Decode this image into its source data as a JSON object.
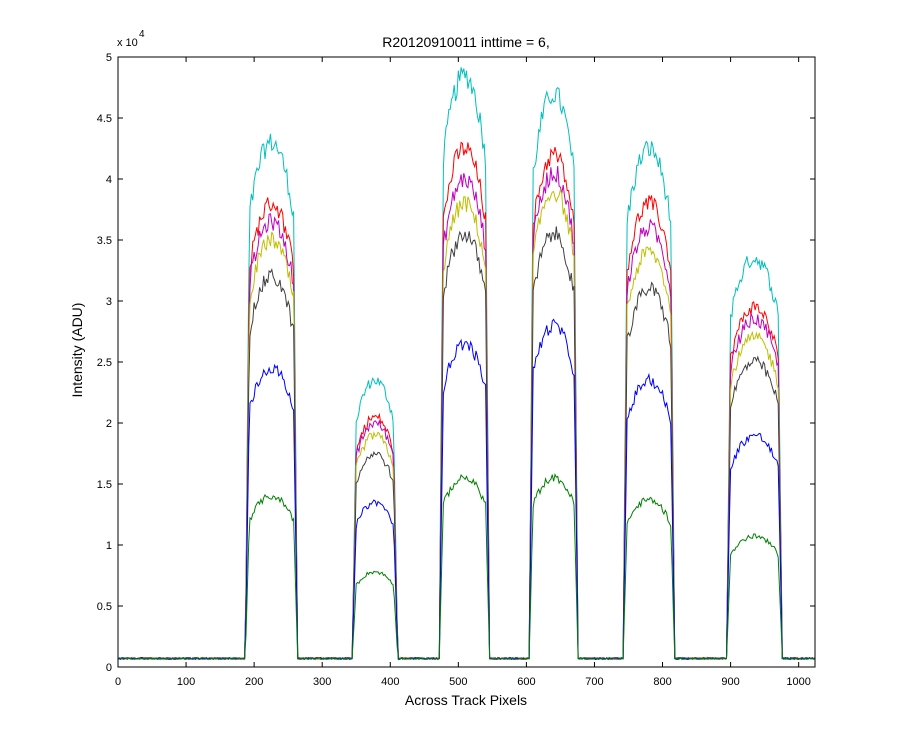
{
  "chart_data": {
    "type": "line",
    "title": "R20120910011 inttime = 6,",
    "xlabel": "Across Track Pixels",
    "ylabel": "Intensity (ADU)",
    "xlim": [
      0,
      1024
    ],
    "ylim": [
      0,
      50000
    ],
    "y_exponent_label": {
      "base": "x 10",
      "power": "4"
    },
    "x_ticks": [
      0,
      100,
      200,
      300,
      400,
      500,
      600,
      700,
      800,
      900,
      1000
    ],
    "x_tick_labels": [
      "0",
      "100",
      "200",
      "300",
      "400",
      "500",
      "600",
      "700",
      "800",
      "900",
      "1000"
    ],
    "y_ticks": [
      0,
      5000,
      10000,
      15000,
      20000,
      25000,
      30000,
      35000,
      40000,
      45000,
      50000
    ],
    "y_tick_labels": [
      "0",
      "0.5",
      "1",
      "1.5",
      "2",
      "2.5",
      "3",
      "3.5",
      "4",
      "4.5",
      "5"
    ],
    "grid": false,
    "legend": "none",
    "baseline": 700,
    "plateaus": [
      {
        "x_start": 193,
        "x_end": 258
      },
      {
        "x_start": 350,
        "x_end": 405
      },
      {
        "x_start": 478,
        "x_end": 540
      },
      {
        "x_start": 610,
        "x_end": 670
      },
      {
        "x_start": 748,
        "x_end": 812
      },
      {
        "x_start": 900,
        "x_end": 970
      }
    ],
    "series": [
      {
        "color": "#00bfbf",
        "plateau_peaks": [
          43000,
          23500,
          48500,
          47000,
          42500,
          33500
        ]
      },
      {
        "color": "#ff0000",
        "plateau_peaks": [
          38000,
          20500,
          42500,
          42000,
          38000,
          29500
        ]
      },
      {
        "color": "#bf00bf",
        "plateau_peaks": [
          36500,
          20000,
          40000,
          40500,
          36000,
          28500
        ]
      },
      {
        "color": "#bfbf00",
        "plateau_peaks": [
          35000,
          19000,
          38000,
          39000,
          34000,
          27000
        ]
      },
      {
        "color": "#404040",
        "plateau_peaks": [
          32000,
          17500,
          35500,
          35500,
          31000,
          25000
        ]
      },
      {
        "color": "#0000ff",
        "plateau_peaks": [
          24500,
          13500,
          26500,
          28000,
          23500,
          19000
        ]
      },
      {
        "color": "#008000",
        "plateau_peaks": [
          14000,
          7800,
          15500,
          15500,
          13700,
          10700
        ]
      }
    ]
  }
}
